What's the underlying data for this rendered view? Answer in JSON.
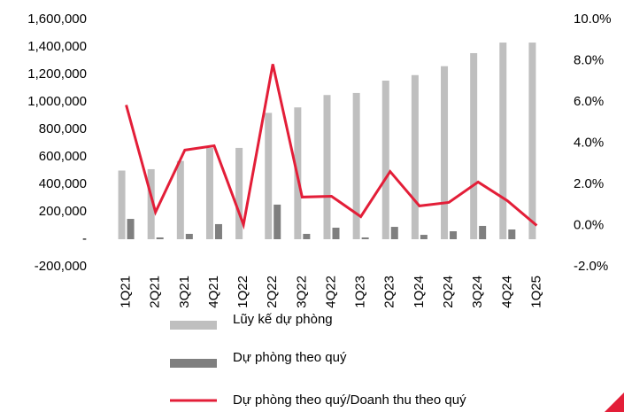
{
  "chart_data": {
    "type": "bar_line",
    "categories": [
      "1Q21",
      "2Q21",
      "3Q21",
      "4Q21",
      "1Q22",
      "2Q22",
      "3Q22",
      "4Q22",
      "1Q23",
      "2Q23",
      "1Q24",
      "2Q24",
      "3Q24",
      "4Q24",
      "1Q25"
    ],
    "series": [
      {
        "name": "Lũy kế dự phòng",
        "type": "bar",
        "color": "#bfbfbf",
        "values": [
          500000,
          510000,
          570000,
          665000,
          665000,
          920000,
          960000,
          1050000,
          1065000,
          1155000,
          1195000,
          1260000,
          1355000,
          1432000,
          1432000
        ]
      },
      {
        "name": "Dự phòng theo quý",
        "type": "bar",
        "color": "#7f7f7f",
        "values": [
          148000,
          13000,
          39000,
          110000,
          0,
          252000,
          39000,
          84000,
          13000,
          90000,
          32000,
          58000,
          97000,
          71000,
          0
        ]
      },
      {
        "name": "Dự phòng theo quý/Doanh thu theo quý",
        "type": "line",
        "axis": "y2",
        "color": "#e31e38",
        "values": [
          5.85,
          0.65,
          3.66,
          3.87,
          0.04,
          7.83,
          1.38,
          1.42,
          0.43,
          2.62,
          0.95,
          1.12,
          2.11,
          1.2,
          0
        ]
      }
    ],
    "ylim": [
      -200000,
      1600000
    ],
    "yticks": [
      {
        "value": -200000,
        "label": "-200,000"
      },
      {
        "value": 0,
        "label": "-"
      },
      {
        "value": 200000,
        "label": "200,000"
      },
      {
        "value": 400000,
        "label": "400,000"
      },
      {
        "value": 600000,
        "label": "600,000"
      },
      {
        "value": 800000,
        "label": "800,000"
      },
      {
        "value": 1000000,
        "label": "1,000,000"
      },
      {
        "value": 1200000,
        "label": "1,200,000"
      },
      {
        "value": 1400000,
        "label": "1,400,000"
      },
      {
        "value": 1600000,
        "label": "1,600,000"
      }
    ],
    "y2lim": [
      -2,
      10
    ],
    "y2ticks": [
      {
        "value": -2,
        "label": "-2.0%"
      },
      {
        "value": 0,
        "label": "0.0%"
      },
      {
        "value": 2,
        "label": "2.0%"
      },
      {
        "value": 4,
        "label": "4.0%"
      },
      {
        "value": 6,
        "label": "6.0%"
      },
      {
        "value": 8,
        "label": "8.0%"
      },
      {
        "value": 10,
        "label": "10.0%"
      }
    ],
    "grid": false
  }
}
